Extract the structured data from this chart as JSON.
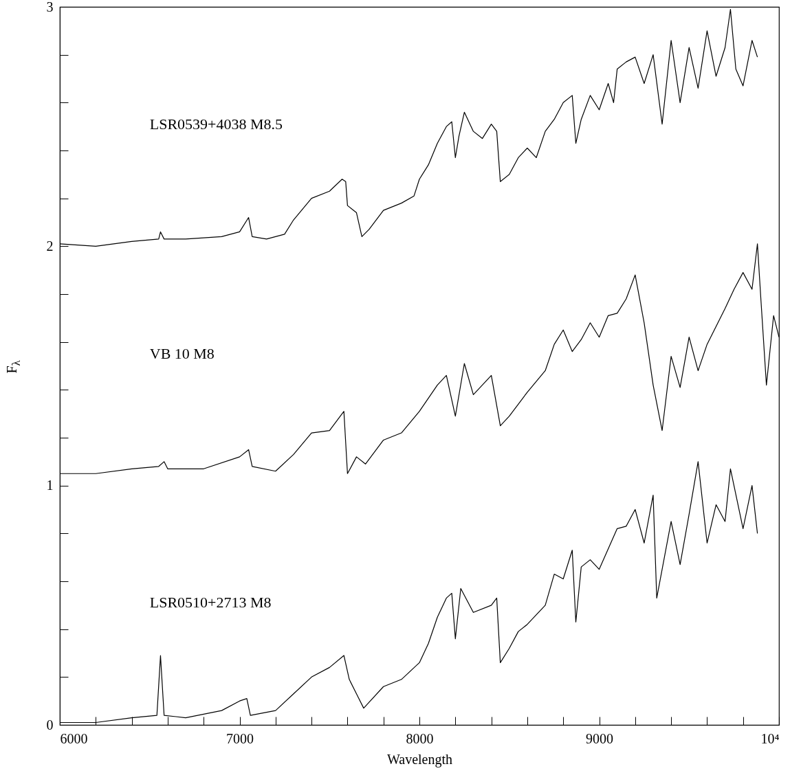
{
  "chart_data": {
    "type": "line",
    "xlabel": "Wavelength",
    "ylabel": "F$_{λ}$",
    "xlim": [
      6000,
      10000
    ],
    "ylim": [
      0,
      3
    ],
    "xticks": [
      6000,
      {
        "value": 6200,
        "label": null
      },
      {
        "value": 6400,
        "label": null
      },
      {
        "value": 6600,
        "label": null
      },
      {
        "value": 6800,
        "label": null
      },
      7000,
      {
        "value": 7200,
        "label": null
      },
      {
        "value": 7400,
        "label": null
      },
      {
        "value": 7600,
        "label": null
      },
      {
        "value": 7800,
        "label": null
      },
      8000,
      {
        "value": 8200,
        "label": null
      },
      {
        "value": 8400,
        "label": null
      },
      {
        "value": 8600,
        "label": null
      },
      {
        "value": 8800,
        "label": null
      },
      9000,
      {
        "value": 9200,
        "label": null
      },
      {
        "value": 9400,
        "label": null
      },
      {
        "value": 9600,
        "label": null
      },
      {
        "value": 9800,
        "label": null
      },
      {
        "value": 10000,
        "label": "10⁴"
      }
    ],
    "yticks": [
      0,
      {
        "value": 0.2,
        "label": null
      },
      {
        "value": 0.4,
        "label": null
      },
      {
        "value": 0.6,
        "label": null
      },
      {
        "value": 0.8,
        "label": null
      },
      1,
      {
        "value": 1.2,
        "label": null
      },
      {
        "value": 1.4,
        "label": null
      },
      {
        "value": 1.6,
        "label": null
      },
      {
        "value": 1.8,
        "label": null
      },
      2,
      {
        "value": 2.2,
        "label": null
      },
      {
        "value": 2.4,
        "label": null
      },
      {
        "value": 2.6,
        "label": null
      },
      {
        "value": 2.8,
        "label": null
      },
      3
    ],
    "grid": false,
    "series": [
      {
        "color": "#000000",
        "x": [
          6000,
          6200,
          6400,
          6550,
          6560,
          6580,
          6700,
          6900,
          7000,
          7050,
          7070,
          7150,
          7250,
          7300,
          7400,
          7500,
          7570,
          7590,
          7600,
          7650,
          7680,
          7720,
          7800,
          7900,
          7970,
          8000,
          8050,
          8100,
          8150,
          8180,
          8200,
          8220,
          8250,
          8300,
          8350,
          8400,
          8430,
          8450,
          8500,
          8550,
          8600,
          8650,
          8700,
          8750,
          8800,
          8850,
          8870,
          8900,
          8950,
          9000,
          9050,
          9080,
          9100,
          9150,
          9200,
          9250,
          9300,
          9350,
          9400,
          9450,
          9500,
          9550,
          9600,
          9650,
          9700,
          9730,
          9760,
          9800,
          9850,
          9880
        ],
        "values": [
          2.01,
          2.0,
          2.02,
          2.03,
          2.06,
          2.03,
          2.03,
          2.04,
          2.06,
          2.12,
          2.04,
          2.03,
          2.05,
          2.11,
          2.2,
          2.23,
          2.28,
          2.27,
          2.17,
          2.14,
          2.04,
          2.07,
          2.15,
          2.18,
          2.21,
          2.28,
          2.34,
          2.43,
          2.5,
          2.52,
          2.37,
          2.46,
          2.56,
          2.48,
          2.45,
          2.51,
          2.48,
          2.27,
          2.3,
          2.37,
          2.41,
          2.37,
          2.48,
          2.53,
          2.6,
          2.63,
          2.43,
          2.53,
          2.63,
          2.57,
          2.68,
          2.6,
          2.74,
          2.77,
          2.79,
          2.68,
          2.8,
          2.51,
          2.86,
          2.6,
          2.83,
          2.66,
          2.9,
          2.71,
          2.83,
          2.99,
          2.74,
          2.67,
          2.86,
          2.79
        ]
      },
      {
        "color": "#000000",
        "x": [
          6000,
          6200,
          6400,
          6550,
          6580,
          6600,
          6800,
          7000,
          7050,
          7070,
          7200,
          7300,
          7400,
          7500,
          7580,
          7600,
          7650,
          7700,
          7800,
          7900,
          8000,
          8100,
          8150,
          8200,
          8250,
          8300,
          8400,
          8450,
          8500,
          8600,
          8700,
          8750,
          8800,
          8850,
          8900,
          8950,
          9000,
          9050,
          9100,
          9150,
          9200,
          9250,
          9300,
          9350,
          9400,
          9450,
          9500,
          9550,
          9600,
          9700,
          9750,
          9800,
          9850,
          9880,
          9900,
          9930,
          9970,
          10000
        ],
        "values": [
          1.05,
          1.05,
          1.07,
          1.08,
          1.1,
          1.07,
          1.07,
          1.12,
          1.15,
          1.08,
          1.06,
          1.13,
          1.22,
          1.23,
          1.31,
          1.05,
          1.12,
          1.09,
          1.19,
          1.22,
          1.31,
          1.42,
          1.46,
          1.29,
          1.51,
          1.38,
          1.46,
          1.25,
          1.29,
          1.39,
          1.48,
          1.59,
          1.65,
          1.56,
          1.61,
          1.68,
          1.62,
          1.71,
          1.72,
          1.78,
          1.88,
          1.68,
          1.42,
          1.23,
          1.54,
          1.41,
          1.62,
          1.48,
          1.59,
          1.74,
          1.82,
          1.89,
          1.82,
          2.01,
          1.77,
          1.42,
          1.71,
          1.62
        ]
      },
      {
        "color": "#000000",
        "x": [
          6000,
          6200,
          6400,
          6540,
          6560,
          6580,
          6700,
          6900,
          7000,
          7040,
          7060,
          7200,
          7300,
          7400,
          7500,
          7580,
          7610,
          7650,
          7690,
          7800,
          7900,
          8000,
          8050,
          8100,
          8150,
          8180,
          8200,
          8230,
          8300,
          8400,
          8430,
          8450,
          8500,
          8550,
          8600,
          8700,
          8750,
          8800,
          8850,
          8870,
          8900,
          8950,
          9000,
          9100,
          9150,
          9200,
          9250,
          9300,
          9320,
          9400,
          9450,
          9500,
          9550,
          9600,
          9650,
          9700,
          9730,
          9800,
          9850,
          9880
        ],
        "values": [
          0.01,
          0.01,
          0.03,
          0.04,
          0.29,
          0.04,
          0.03,
          0.06,
          0.1,
          0.11,
          0.04,
          0.06,
          0.13,
          0.2,
          0.24,
          0.29,
          0.19,
          0.13,
          0.07,
          0.16,
          0.19,
          0.26,
          0.34,
          0.45,
          0.53,
          0.55,
          0.36,
          0.57,
          0.47,
          0.5,
          0.53,
          0.26,
          0.32,
          0.39,
          0.42,
          0.5,
          0.63,
          0.61,
          0.73,
          0.43,
          0.66,
          0.69,
          0.65,
          0.82,
          0.83,
          0.9,
          0.76,
          0.96,
          0.53,
          0.85,
          0.67,
          0.88,
          1.1,
          0.76,
          0.92,
          0.85,
          1.07,
          0.82,
          1.0,
          0.8
        ]
      }
    ],
    "annotations": [
      "LSR0539+4038 M8.5",
      "VB 10 M8",
      "LSR0510+2713 M8"
    ]
  }
}
